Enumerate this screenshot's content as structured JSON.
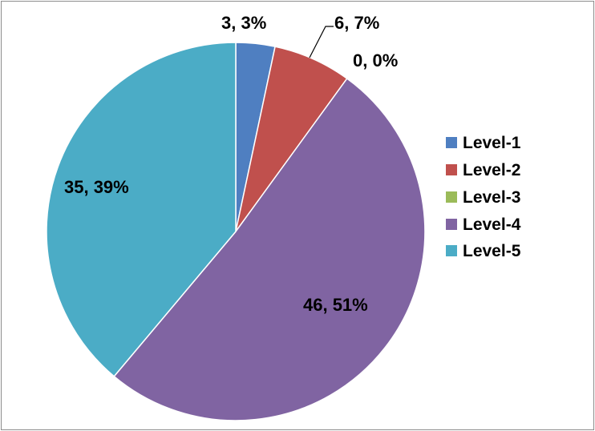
{
  "chart_data": {
    "type": "pie",
    "title": "",
    "legend_position": "right",
    "start_angle_deg": 0,
    "direction": "clockwise",
    "slices": [
      {
        "name": "Level-1",
        "value": 3,
        "percent": "3%",
        "label": "3, 3%",
        "color": "#4f7fc1"
      },
      {
        "name": "Level-2",
        "value": 6,
        "percent": "7%",
        "label": "6, 7%",
        "color": "#c0504d"
      },
      {
        "name": "Level-3",
        "value": 0,
        "percent": "0%",
        "label": "0, 0%",
        "color": "#9bbb59"
      },
      {
        "name": "Level-4",
        "value": 46,
        "percent": "51%",
        "label": "46, 51%",
        "color": "#8064a2"
      },
      {
        "name": "Level-5",
        "value": 35,
        "percent": "39%",
        "label": "35, 39%",
        "color": "#4bacc6"
      }
    ]
  }
}
